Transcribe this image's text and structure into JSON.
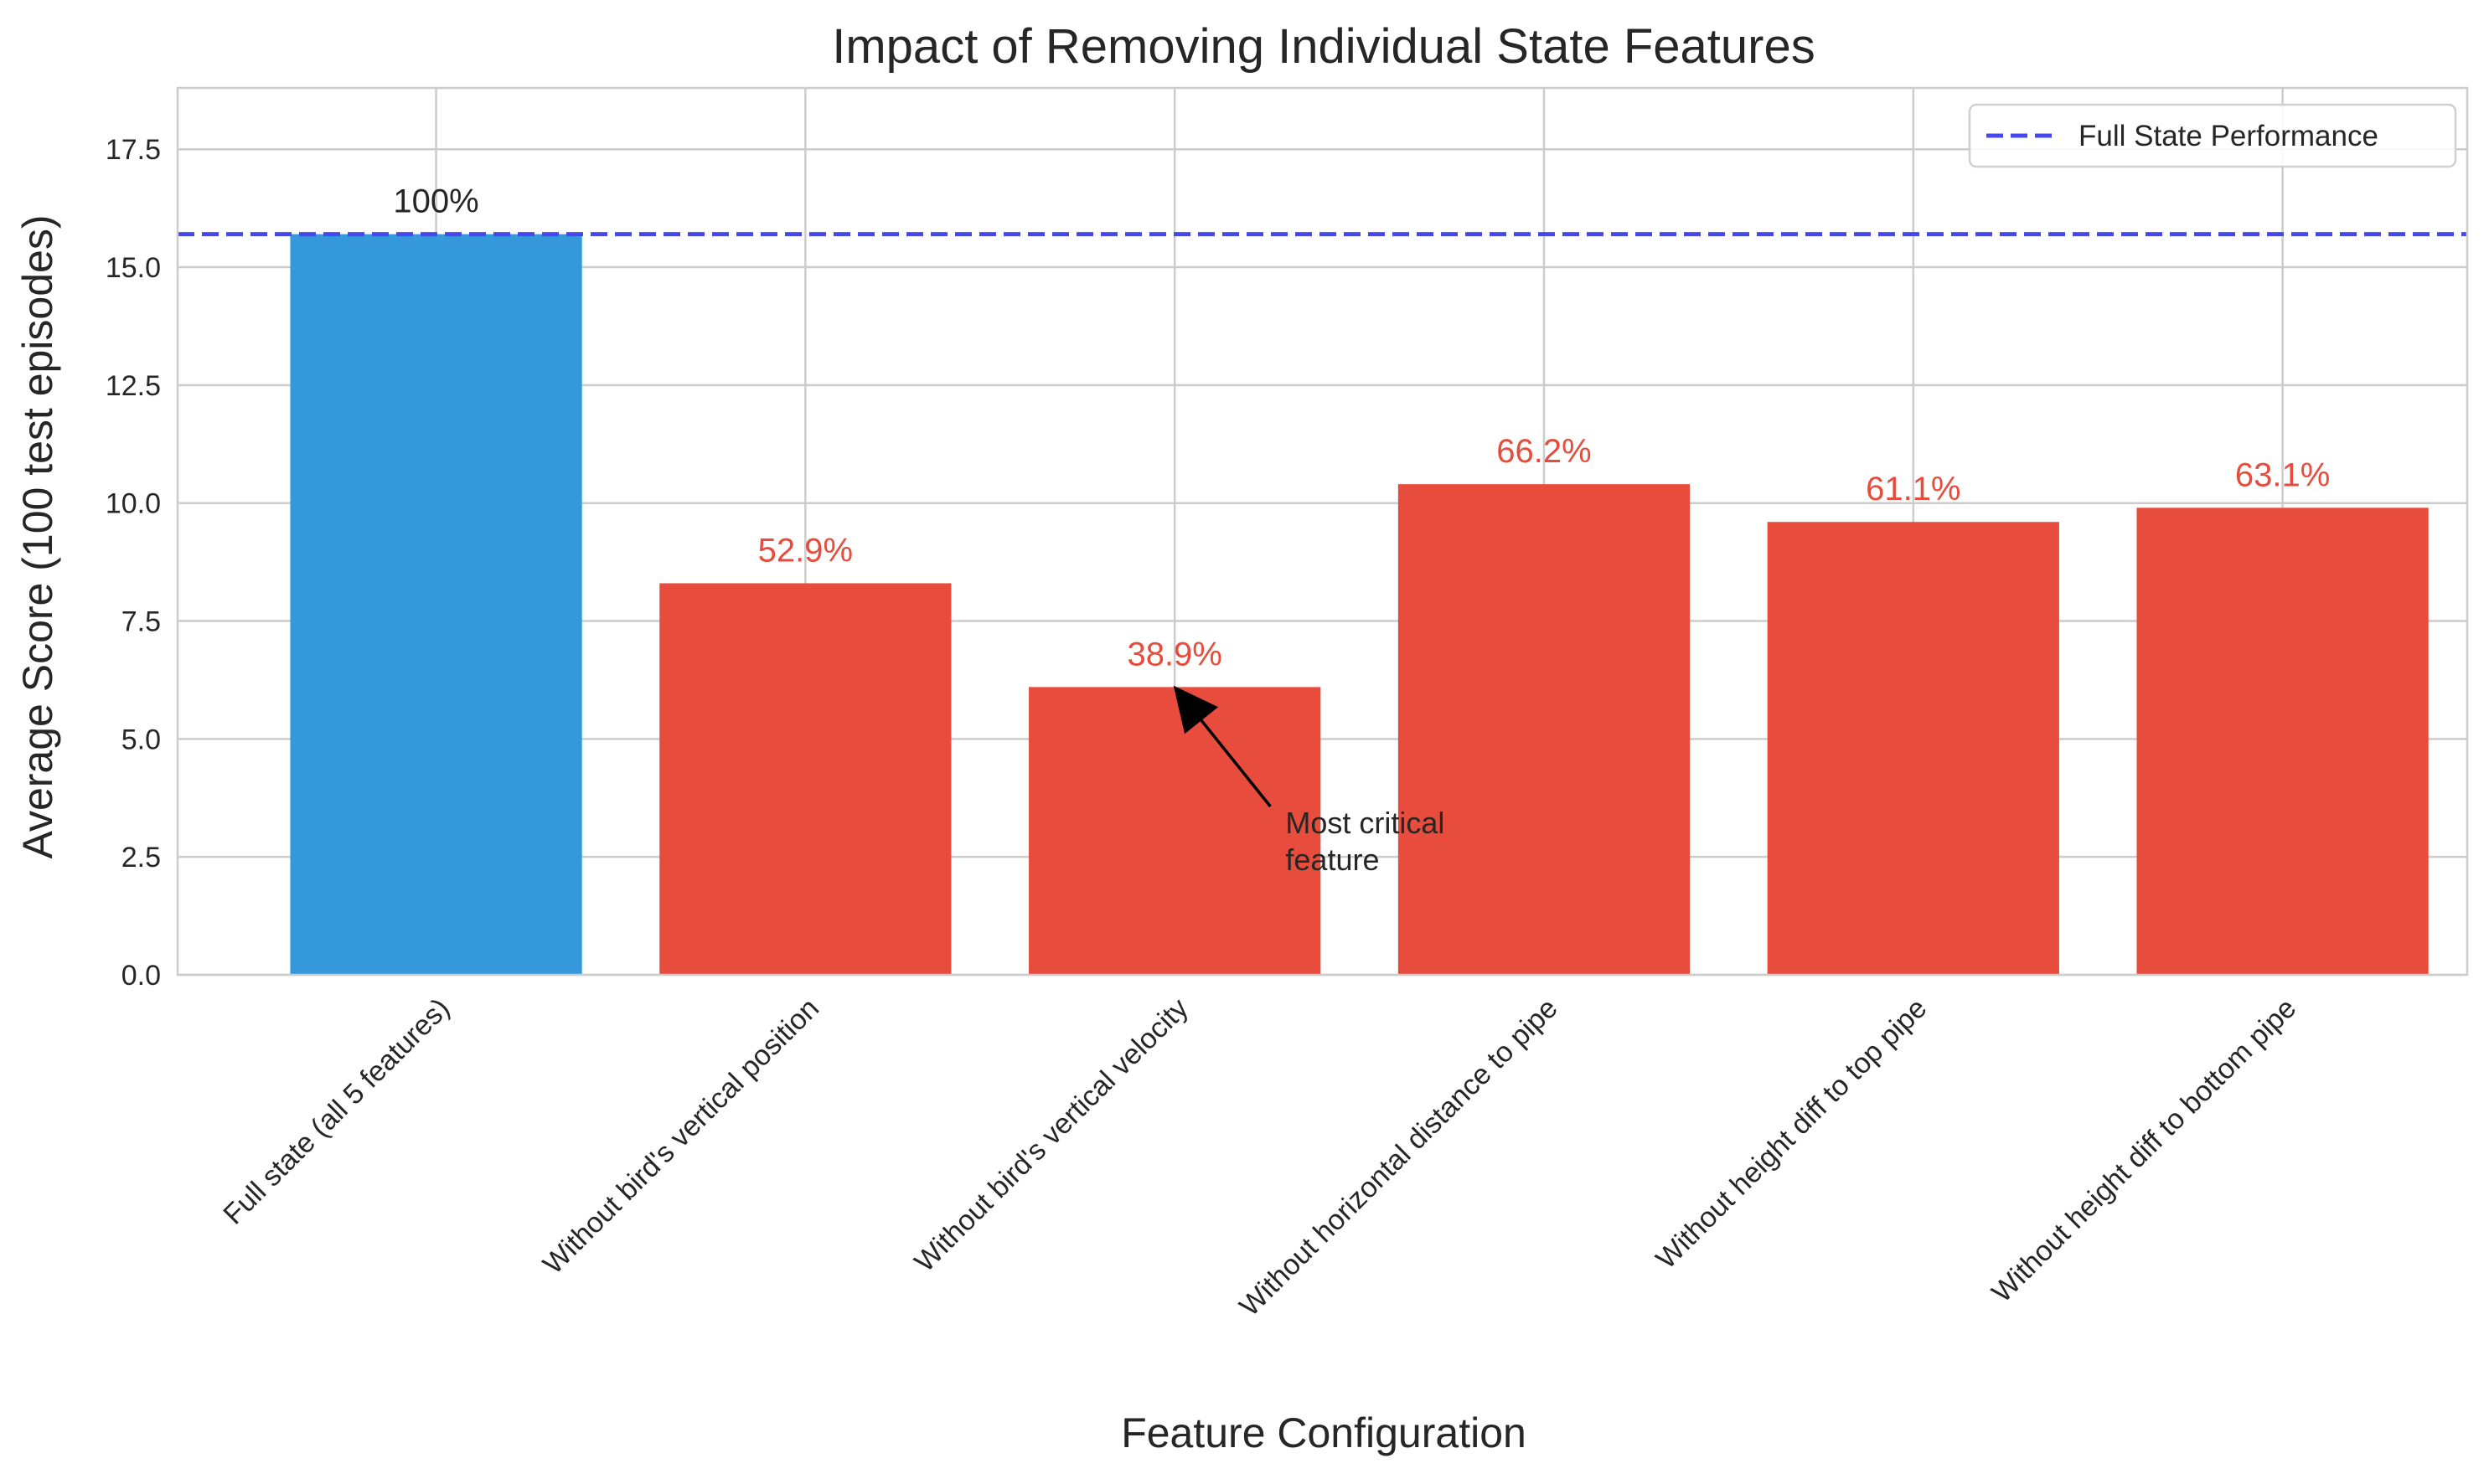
{
  "chart_data": {
    "type": "bar",
    "title": "Impact of Removing Individual State Features",
    "xlabel": "Feature Configuration",
    "ylabel": "Average Score (100 test episodes)",
    "ylim": [
      0,
      18.8
    ],
    "yticks": [
      0.0,
      2.5,
      5.0,
      7.5,
      10.0,
      12.5,
      15.0,
      17.5
    ],
    "ytick_labels": [
      "0.0",
      "2.5",
      "5.0",
      "7.5",
      "10.0",
      "12.5",
      "15.0",
      "17.5"
    ],
    "grid": true,
    "legend_position": "top-right",
    "categories": [
      "Full state (all 5 features)",
      "Without bird's vertical position",
      "Without bird's vertical velocity",
      "Without horizontal distance to pipe",
      "Without height diff to top pipe",
      "Without height diff to bottom pipe"
    ],
    "values": [
      15.7,
      8.3,
      6.1,
      10.4,
      9.6,
      9.9
    ],
    "bar_labels": [
      "100%",
      "52.9%",
      "38.9%",
      "66.2%",
      "61.1%",
      "63.1%"
    ],
    "bar_colors": [
      "#3498db",
      "#e74c3c",
      "#e74c3c",
      "#e74c3c",
      "#e74c3c",
      "#e74c3c"
    ],
    "bar_label_colors": [
      "#262626",
      "#e74c3c",
      "#e74c3c",
      "#e74c3c",
      "#e74c3c",
      "#e74c3c"
    ],
    "reference_line": {
      "value": 15.7,
      "label": "Full State Performance",
      "color": "#4747f0",
      "style": "dashed"
    },
    "annotation": {
      "text_lines": [
        "Most critical",
        "feature"
      ],
      "target_category_index": 2,
      "target_value": 6.1,
      "text_x_offset": 0.3,
      "text_y_value": 3.0
    }
  }
}
